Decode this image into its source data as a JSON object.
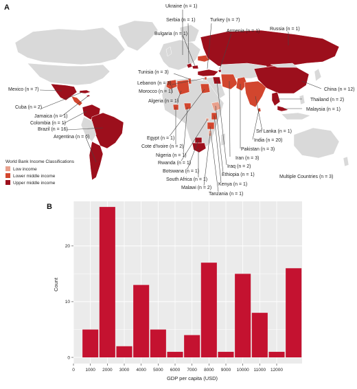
{
  "colors": {
    "low_income": "#e9a08c",
    "lower_middle_income": "#d2462e",
    "upper_middle_income": "#9c0f1c",
    "no_study": "#d9d9d9",
    "bar_fill": "#c41230",
    "plot_bg": "#ebebeb"
  },
  "panel_a": {
    "letter": "A",
    "legend": {
      "title": "World Bank Income Classifications",
      "items": [
        {
          "label": "Low income",
          "color": "#e9a08c"
        },
        {
          "label": "Lower middle income",
          "color": "#d2462e"
        },
        {
          "label": "Upper middle income",
          "color": "#9c0f1c"
        }
      ]
    },
    "country_labels": [
      "Ukraine (n = 1)",
      "Serbia (n = 1)",
      "Turkey (n = 7)",
      "Bulgaria (n = 1)",
      "Armenia (n = 1)",
      "Russia (n = 1)",
      "Tunisia (n = 3)",
      "Lebanon (n = 3)",
      "Morocco (n = 1)",
      "Algeria (n = 1)",
      "Mexico (n = 7)",
      "Cuba (n = 2)",
      "Jamaica (n = 1)",
      "Colombia (n = 1)",
      "Brazil (n = 16)",
      "Argentina (n = 6)",
      "Egypt (n = 1)",
      "Cote d'Ivoire (n = 2)",
      "Nigeria (n = 1)",
      "Rwanda (n = 1)",
      "Botswana (n = 1)",
      "South Africa (n = 1)",
      "Malawi (n = 2)",
      "Tanzania (n = 1)",
      "Kenya (n = 1)",
      "Ethiopia (n = 1)",
      "Iraq (n = 2)",
      "Iran (n = 3)",
      "Pakistan (n = 3)",
      "Sri Lanka (n = 1)",
      "India (n = 20)",
      "Malaysia (n = 1)",
      "Thailand (n = 2)",
      "China (n = 12)",
      "Multiple Countries (n = 3)"
    ]
  },
  "chart_data": {
    "type": "bar",
    "panel_letter": "B",
    "xlabel": "GDP per capita (USD)",
    "ylabel": "Count",
    "xlim": [
      0,
      13500
    ],
    "ylim": [
      0,
      28
    ],
    "x_ticks": [
      "0",
      "1000",
      "2000",
      "3000",
      "4000",
      "5000",
      "6000",
      "7000",
      "8000",
      "9000",
      "10000",
      "11000",
      "12000"
    ],
    "y_ticks": [
      "0",
      "10",
      "20"
    ],
    "bins": [
      {
        "start": 500,
        "end": 1500,
        "count": 5
      },
      {
        "start": 1500,
        "end": 2500,
        "count": 27
      },
      {
        "start": 2500,
        "end": 3500,
        "count": 2
      },
      {
        "start": 3500,
        "end": 4500,
        "count": 13
      },
      {
        "start": 4500,
        "end": 5500,
        "count": 5
      },
      {
        "start": 5500,
        "end": 6500,
        "count": 1
      },
      {
        "start": 6500,
        "end": 7500,
        "count": 4
      },
      {
        "start": 7500,
        "end": 8500,
        "count": 17
      },
      {
        "start": 8500,
        "end": 9500,
        "count": 1
      },
      {
        "start": 9500,
        "end": 10500,
        "count": 15
      },
      {
        "start": 10500,
        "end": 11500,
        "count": 8
      },
      {
        "start": 11500,
        "end": 12500,
        "count": 1
      },
      {
        "start": 12500,
        "end": 13500,
        "count": 16
      }
    ],
    "grid": true
  }
}
